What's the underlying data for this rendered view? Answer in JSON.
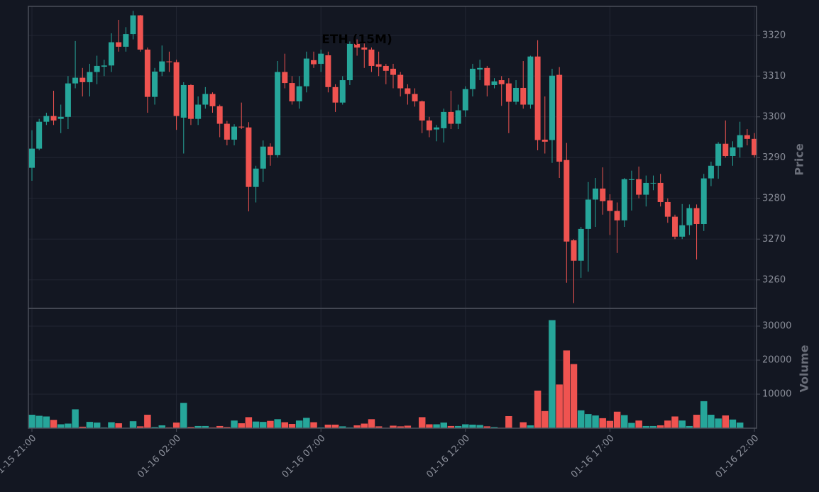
{
  "chart_data": {
    "type": "candlestick",
    "title": "ETH (15M)",
    "ylabel": "Price",
    "volume_label": "Volume",
    "x": [
      "01-15 21:00",
      "01-15 21:15",
      "01-15 21:30",
      "01-15 21:45",
      "01-15 22:00",
      "01-15 22:15",
      "01-15 22:30",
      "01-15 22:45",
      "01-15 23:00",
      "01-15 23:15",
      "01-15 23:30",
      "01-15 23:45",
      "01-16 00:00",
      "01-16 00:15",
      "01-16 00:30",
      "01-16 00:45",
      "01-16 01:00",
      "01-16 01:15",
      "01-16 01:30",
      "01-16 01:45",
      "01-16 02:00",
      "01-16 02:15",
      "01-16 02:30",
      "01-16 02:45",
      "01-16 03:00",
      "01-16 03:15",
      "01-16 03:30",
      "01-16 03:45",
      "01-16 04:00",
      "01-16 04:15",
      "01-16 04:30",
      "01-16 04:45",
      "01-16 05:00",
      "01-16 05:15",
      "01-16 05:30",
      "01-16 05:45",
      "01-16 06:00",
      "01-16 06:15",
      "01-16 06:30",
      "01-16 06:45",
      "01-16 07:00",
      "01-16 07:15",
      "01-16 07:30",
      "01-16 07:45",
      "01-16 08:00",
      "01-16 08:15",
      "01-16 08:30",
      "01-16 08:45",
      "01-16 09:00",
      "01-16 09:15",
      "01-16 09:30",
      "01-16 09:45",
      "01-16 10:00",
      "01-16 10:15",
      "01-16 10:30",
      "01-16 10:45",
      "01-16 11:00",
      "01-16 11:15",
      "01-16 11:30",
      "01-16 11:45",
      "01-16 12:00",
      "01-16 12:15",
      "01-16 12:30",
      "01-16 12:45",
      "01-16 13:00",
      "01-16 13:15",
      "01-16 13:30",
      "01-16 13:45",
      "01-16 14:00",
      "01-16 14:15",
      "01-16 14:30",
      "01-16 14:45",
      "01-16 15:00",
      "01-16 15:15",
      "01-16 15:30",
      "01-16 15:45",
      "01-16 16:00",
      "01-16 16:15",
      "01-16 16:30",
      "01-16 16:45",
      "01-16 17:00",
      "01-16 17:15",
      "01-16 17:30",
      "01-16 17:45",
      "01-16 18:00",
      "01-16 18:15",
      "01-16 18:30",
      "01-16 18:45",
      "01-16 19:00",
      "01-16 19:15",
      "01-16 19:30",
      "01-16 19:45",
      "01-16 20:00",
      "01-16 20:15",
      "01-16 20:30",
      "01-16 20:45",
      "01-16 21:00",
      "01-16 21:15",
      "01-16 21:30",
      "01-16 21:45",
      "01-16 22:00"
    ],
    "open": [
      3287.5,
      3292.2,
      3298.8,
      3300.2,
      3299.5,
      3300,
      3308.2,
      3309.6,
      3308.5,
      3311,
      3312.3,
      3312.6,
      3318.3,
      3317.2,
      3320.3,
      3324.9,
      3316.5,
      3304.9,
      3311.1,
      3313.6,
      3313.4,
      3299.8,
      3307.8,
      3299.5,
      3303,
      3305.6,
      3302.6,
      3298.3,
      3294.4,
      3297.6,
      3297.4,
      3282.8,
      3287.3,
      3292.7,
      3290.6,
      3311,
      3308.3,
      3303.8,
      3307.5,
      3313.9,
      3313,
      3315.1,
      3307.3,
      3303.5,
      3309,
      3317.9,
      3317,
      3316.5,
      3312.9,
      3312.5,
      3311.8,
      3310.3,
      3307,
      3305.6,
      3303.8,
      3299.1,
      3296.9,
      3297.2,
      3301.2,
      3298.3,
      3301.6,
      3306.8,
      3311.6,
      3312,
      3307.8,
      3309,
      3308.2,
      3303.7,
      3307.1,
      3303,
      3314.8,
      3294.4,
      3294.3,
      3310.3,
      3289.4,
      3269.7,
      3264.7,
      3272.5,
      3279.7,
      3282.4,
      3279.5,
      3276.9,
      3274.6,
      3284.5,
      3284.7,
      3280.9,
      3283.7,
      3283.8,
      3279.1,
      3275.5,
      3270.6,
      3273.4,
      3277.6,
      3273.7,
      3284.9,
      3288,
      3293.4,
      3290.4,
      3292.5,
      3295.5,
      3294.6
    ],
    "high": [
      3296.7,
      3299.5,
      3301,
      3306.4,
      3303,
      3310,
      3318.6,
      3312,
      3313,
      3315,
      3314,
      3320.5,
      3323.8,
      3322,
      3326,
      3325,
      3317,
      3312,
      3317.5,
      3316,
      3314,
      3308.5,
      3308,
      3305,
      3307.3,
      3306,
      3303,
      3299,
      3298.2,
      3303.5,
      3298.7,
      3288,
      3294.2,
      3293.5,
      3313.7,
      3315.5,
      3310,
      3310,
      3316,
      3316,
      3316.5,
      3316,
      3308,
      3310,
      3318.5,
      3319,
      3318,
      3317,
      3316,
      3313,
      3313,
      3311,
      3308,
      3307,
      3304,
      3300,
      3298,
      3302,
      3306.4,
      3303,
      3307.5,
      3313,
      3314,
      3312.5,
      3309.5,
      3310,
      3309.5,
      3309,
      3313.7,
      3315,
      3318.8,
      3305,
      3311.8,
      3312.2,
      3293.6,
      3270,
      3273,
      3284,
      3285,
      3287.6,
      3281,
      3279,
      3285,
      3286.8,
      3287.8,
      3285.6,
      3285.6,
      3286,
      3280,
      3276,
      3278.6,
      3278.5,
      3278.5,
      3286,
      3289,
      3293.8,
      3299.1,
      3294,
      3298.8,
      3297,
      3296
    ],
    "low": [
      3284.3,
      3291.8,
      3298,
      3298,
      3296,
      3297,
      3307,
      3305,
      3305,
      3308,
      3310,
      3311,
      3316,
      3316,
      3319,
      3316,
      3301,
      3303,
      3310,
      3311,
      3296.8,
      3291,
      3298,
      3298,
      3302,
      3301,
      3295,
      3293,
      3293,
      3297,
      3276.8,
      3279,
      3284,
      3288,
      3290,
      3307,
      3303,
      3302,
      3306,
      3312,
      3311,
      3306,
      3301.2,
      3303,
      3307.8,
      3315,
      3312,
      3311,
      3310,
      3308,
      3307,
      3305,
      3303,
      3302.5,
      3296,
      3295,
      3294,
      3293.7,
      3297,
      3297,
      3300,
      3305,
      3309,
      3305,
      3307,
      3302.7,
      3296,
      3303,
      3302,
      3302,
      3291.8,
      3291,
      3288.7,
      3285,
      3259.3,
      3254.3,
      3260.5,
      3262,
      3273,
      3276,
      3271,
      3266.6,
      3273,
      3277,
      3280,
      3278,
      3282,
      3278,
      3274,
      3270,
      3270,
      3271,
      3265,
      3272,
      3283,
      3284.8,
      3290,
      3288,
      3290,
      3293,
      3290
    ],
    "close": [
      3292.2,
      3298.8,
      3300.2,
      3299.1,
      3300,
      3308.2,
      3309.6,
      3308.5,
      3311,
      3312.5,
      3312.6,
      3318.3,
      3317.2,
      3320.3,
      3324.9,
      3316.5,
      3304.9,
      3311.1,
      3313.6,
      3313.4,
      3300.2,
      3307.8,
      3299.5,
      3303,
      3305.6,
      3302.6,
      3298.3,
      3294.4,
      3297.6,
      3297.4,
      3282.8,
      3287.3,
      3292.7,
      3290.6,
      3311,
      3308.3,
      3303.8,
      3307.5,
      3314.3,
      3312.9,
      3315.5,
      3307.3,
      3303.5,
      3309,
      3317.9,
      3317,
      3316.5,
      3312.5,
      3312.3,
      3311.3,
      3310.3,
      3307,
      3305.6,
      3303.8,
      3299.1,
      3296.7,
      3297.4,
      3301.2,
      3298.3,
      3301.6,
      3306.8,
      3311.8,
      3312,
      3307.7,
      3308.7,
      3308,
      3303.7,
      3307.1,
      3303,
      3314.8,
      3294.3,
      3293.9,
      3310.1,
      3289,
      3269.4,
      3264.7,
      3272.5,
      3279.7,
      3282.4,
      3279.3,
      3276.9,
      3274.6,
      3284.7,
      3284.7,
      3280.9,
      3283.8,
      3283.8,
      3279.1,
      3275.5,
      3270.6,
      3273.4,
      3277.6,
      3273.7,
      3284.9,
      3288,
      3293.4,
      3290.4,
      3292.5,
      3295.5,
      3294.6,
      3290.6
    ],
    "volume": [
      4000,
      3700,
      3500,
      2500,
      1200,
      1400,
      5600,
      500,
      1900,
      1700,
      300,
      1800,
      1500,
      200,
      2100,
      600,
      4000,
      400,
      900,
      300,
      1700,
      7500,
      400,
      700,
      700,
      300,
      700,
      400,
      2300,
      1500,
      3300,
      2000,
      1900,
      2200,
      2700,
      1800,
      1300,
      2300,
      3100,
      1800,
      300,
      1100,
      1100,
      600,
      300,
      900,
      1400,
      2700,
      600,
      200,
      800,
      600,
      800,
      100,
      3300,
      1200,
      1200,
      1700,
      700,
      700,
      1200,
      1100,
      1000,
      600,
      400,
      200,
      3600,
      100,
      1800,
      900,
      11100,
      5100,
      31800,
      12900,
      22900,
      18900,
      5300,
      4200,
      3800,
      3000,
      2200,
      4900,
      3900,
      1600,
      2300,
      700,
      700,
      900,
      2300,
      3500,
      2300,
      700,
      4000,
      8000,
      4000,
      2900,
      3800,
      2600,
      1700,
      100,
      100
    ],
    "ylim": [
      3253,
      3327.1
    ],
    "yticks": [
      3260,
      3270,
      3280,
      3290,
      3300,
      3310,
      3320
    ],
    "volume_ylim": [
      0,
      35000
    ],
    "volume_yticks": [
      10000,
      20000,
      30000
    ],
    "xticks": [
      "01-15 21:00",
      "01-16 02:00",
      "01-16 07:00",
      "01-16 12:00",
      "01-16 17:00",
      "01-16 22:00"
    ],
    "up_color": "#26a69a",
    "down_color": "#ef5350",
    "grid": true
  }
}
